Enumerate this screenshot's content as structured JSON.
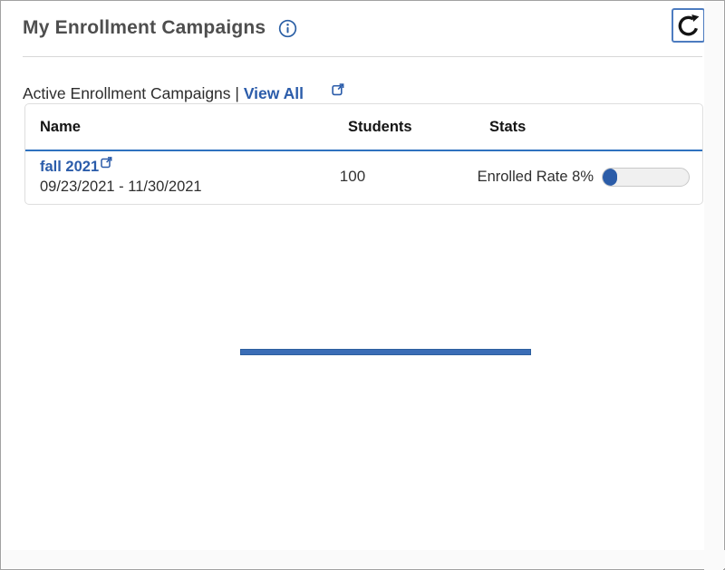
{
  "widget": {
    "title": "My Enrollment Campaigns",
    "info_icon": "info-circle-icon",
    "refresh_icon": "refresh-icon"
  },
  "subheader": {
    "label": "Active Enrollment Campaigns",
    "separator": " | ",
    "view_all_label": "View All",
    "view_all_icon": "external-link-icon"
  },
  "table": {
    "columns": [
      "Name",
      "Students",
      "Stats"
    ],
    "rows": [
      {
        "name": "fall 2021",
        "name_icon": "external-link-icon",
        "date_range": "09/23/2021 - 11/30/2021",
        "students": "100",
        "stats_label": "Enrolled Rate 8%",
        "enrolled_rate_percent": 8
      }
    ]
  },
  "loading_indicator": {
    "visible": true
  },
  "colors": {
    "link_blue": "#2b5caa",
    "header_rule_blue": "#2f72bf",
    "progress_fill_blue": "#2b5ca8",
    "loading_bar_blue": "#3a6db6",
    "refresh_border_blue": "#4d7cc0",
    "title_gray": "#4e4e4e",
    "table_border_gray": "#dedede"
  }
}
